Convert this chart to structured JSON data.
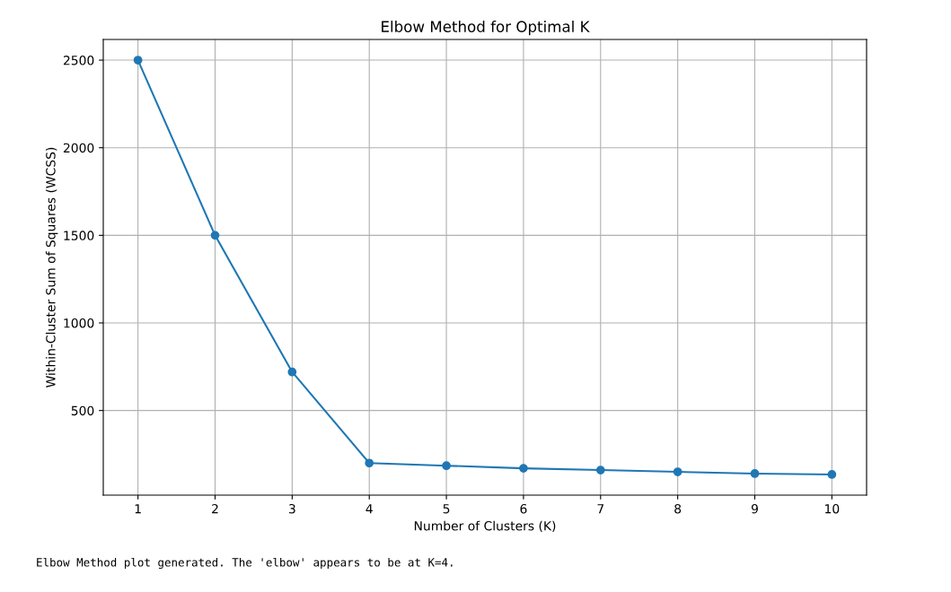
{
  "chart_data": {
    "type": "line",
    "title": "Elbow Method for Optimal K",
    "xlabel": "Number of Clusters (K)",
    "ylabel": "Within-Cluster Sum of Squares (WCSS)",
    "x": [
      1,
      2,
      3,
      4,
      5,
      6,
      7,
      8,
      9,
      10
    ],
    "series": [
      {
        "color": "#1f77b4",
        "values": [
          2500,
          1500,
          720,
          200,
          185,
          170,
          160,
          150,
          140,
          135
        ]
      }
    ],
    "xlim": [
      0.55,
      10.45
    ],
    "xticks": [
      1,
      2,
      3,
      4,
      5,
      6,
      7,
      8,
      9,
      10
    ],
    "ylim": [
      17,
      2618
    ],
    "yticks": [
      500,
      1000,
      1500,
      2000,
      2500
    ],
    "grid": true,
    "marker": "circle",
    "line_style": "solid",
    "annotations": [
      "Elbow Method plot generated. The 'elbow' appears to be at K=4."
    ]
  }
}
